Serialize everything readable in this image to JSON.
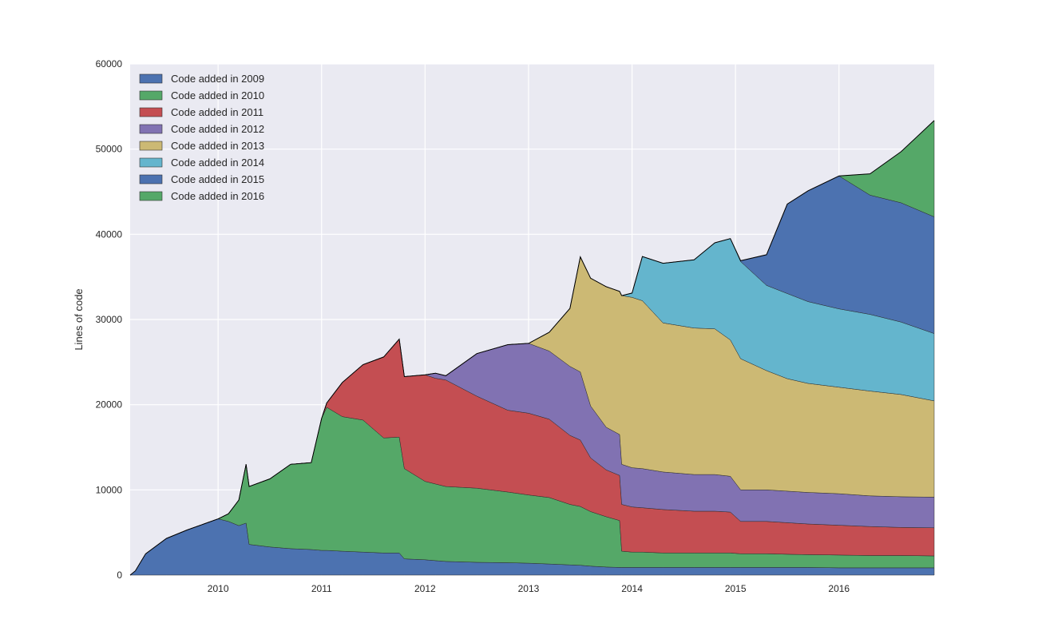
{
  "chart_data": {
    "type": "area",
    "stacked": true,
    "title": "",
    "xlabel": "",
    "ylabel": "Lines of code",
    "xlim": [
      2009.15,
      2016.92
    ],
    "ylim": [
      0,
      60000
    ],
    "grid": true,
    "legend_position": "top-left",
    "y_ticks": [
      0,
      10000,
      20000,
      30000,
      40000,
      50000,
      60000
    ],
    "y_tick_labels": [
      "0",
      "10000",
      "20000",
      "30000",
      "40000",
      "50000",
      "60000"
    ],
    "x_ticks": [
      2010,
      2011,
      2012,
      2013,
      2014,
      2015,
      2016
    ],
    "x_tick_labels": [
      "2010",
      "2011",
      "2012",
      "2013",
      "2014",
      "2015",
      "2016"
    ],
    "x": [
      2009.15,
      2009.2,
      2009.3,
      2009.5,
      2009.7,
      2010.0,
      2010.1,
      2010.2,
      2010.27,
      2010.3,
      2010.5,
      2010.7,
      2010.9,
      2011.0,
      2011.05,
      2011.2,
      2011.4,
      2011.6,
      2011.75,
      2011.8,
      2012.0,
      2012.1,
      2012.2,
      2012.5,
      2012.8,
      2013.0,
      2013.2,
      2013.4,
      2013.5,
      2013.6,
      2013.75,
      2013.88,
      2013.9,
      2014.0,
      2014.1,
      2014.3,
      2014.6,
      2014.8,
      2014.95,
      2015.05,
      2015.3,
      2015.5,
      2015.7,
      2016.0,
      2016.3,
      2016.6,
      2016.92
    ],
    "series": [
      {
        "name": "Code added in 2009",
        "color": "#4c72b0",
        "values": [
          0,
          500,
          2500,
          4300,
          5300,
          6600,
          6300,
          5800,
          6100,
          3600,
          3300,
          3100,
          3000,
          2900,
          2900,
          2800,
          2700,
          2600,
          2600,
          1900,
          1800,
          1700,
          1600,
          1500,
          1450,
          1400,
          1300,
          1200,
          1150,
          1050,
          950,
          900,
          900,
          900,
          900,
          900,
          900,
          900,
          900,
          900,
          900,
          900,
          900,
          850,
          850,
          850,
          850
        ]
      },
      {
        "name": "Code added in 2010",
        "color": "#55a868",
        "values": [
          0,
          0,
          0,
          0,
          0,
          0,
          900,
          3000,
          6900,
          6800,
          8000,
          9900,
          10200,
          15500,
          16800,
          15800,
          15500,
          13500,
          13600,
          10600,
          9200,
          9000,
          8800,
          8700,
          8300,
          8000,
          7800,
          7100,
          6900,
          6400,
          5900,
          5500,
          1900,
          1800,
          1800,
          1700,
          1700,
          1700,
          1700,
          1600,
          1600,
          1550,
          1500,
          1500,
          1450,
          1450,
          1400
        ]
      },
      {
        "name": "Code added in 2011",
        "color": "#c44e52",
        "values": [
          0,
          0,
          0,
          0,
          0,
          0,
          0,
          0,
          0,
          0,
          0,
          0,
          0,
          0,
          500,
          4000,
          6500,
          9500,
          11500,
          10800,
          12500,
          12400,
          12500,
          10800,
          9600,
          9600,
          9200,
          8100,
          7800,
          6300,
          5500,
          5300,
          5500,
          5300,
          5200,
          5100,
          4900,
          4900,
          4800,
          3800,
          3800,
          3700,
          3600,
          3500,
          3400,
          3300,
          3300
        ]
      },
      {
        "name": "Code added in 2012",
        "color": "#8172b2",
        "values": [
          0,
          0,
          0,
          0,
          0,
          0,
          0,
          0,
          0,
          0,
          0,
          0,
          0,
          0,
          0,
          0,
          0,
          0,
          0,
          0,
          0,
          600,
          500,
          5000,
          7700,
          8200,
          8000,
          8100,
          8000,
          6100,
          5000,
          4800,
          4700,
          4600,
          4600,
          4400,
          4300,
          4300,
          4200,
          3700,
          3700,
          3700,
          3700,
          3700,
          3600,
          3600,
          3600
        ]
      },
      {
        "name": "Code added in 2013",
        "color": "#ccb974",
        "values": [
          0,
          0,
          0,
          0,
          0,
          0,
          0,
          0,
          0,
          0,
          0,
          0,
          0,
          0,
          0,
          0,
          0,
          0,
          0,
          0,
          0,
          0,
          0,
          0,
          0,
          0,
          2200,
          6800,
          13500,
          15000,
          16500,
          16800,
          19800,
          20000,
          19700,
          17500,
          17200,
          17100,
          16000,
          15400,
          14000,
          13200,
          12800,
          12500,
          12300,
          12000,
          11300
        ]
      },
      {
        "name": "Code added in 2014",
        "color": "#64b5cd",
        "values": [
          0,
          0,
          0,
          0,
          0,
          0,
          0,
          0,
          0,
          0,
          0,
          0,
          0,
          0,
          0,
          0,
          0,
          0,
          0,
          0,
          0,
          0,
          0,
          0,
          0,
          0,
          0,
          0,
          0,
          0,
          0,
          0,
          0,
          500,
          5200,
          7000,
          8000,
          10100,
          11900,
          11400,
          10000,
          10000,
          9600,
          9200,
          9000,
          8500,
          7900
        ]
      },
      {
        "name": "Code added in 2015",
        "color": "#4c72b0",
        "values": [
          0,
          0,
          0,
          0,
          0,
          0,
          0,
          0,
          0,
          0,
          0,
          0,
          0,
          0,
          0,
          0,
          0,
          0,
          0,
          0,
          0,
          0,
          0,
          0,
          0,
          0,
          0,
          0,
          0,
          0,
          0,
          0,
          0,
          0,
          0,
          0,
          0,
          0,
          0,
          100,
          3600,
          10500,
          13000,
          15600,
          14000,
          14000,
          13700
        ]
      },
      {
        "name": "Code added in 2016",
        "color": "#55a868",
        "values": [
          0,
          0,
          0,
          0,
          0,
          0,
          0,
          0,
          0,
          0,
          0,
          0,
          0,
          0,
          0,
          0,
          0,
          0,
          0,
          0,
          0,
          0,
          0,
          0,
          0,
          0,
          0,
          0,
          0,
          0,
          0,
          0,
          0,
          0,
          0,
          0,
          0,
          0,
          0,
          0,
          0,
          0,
          0,
          0,
          2500,
          6000,
          11300
        ]
      }
    ]
  }
}
